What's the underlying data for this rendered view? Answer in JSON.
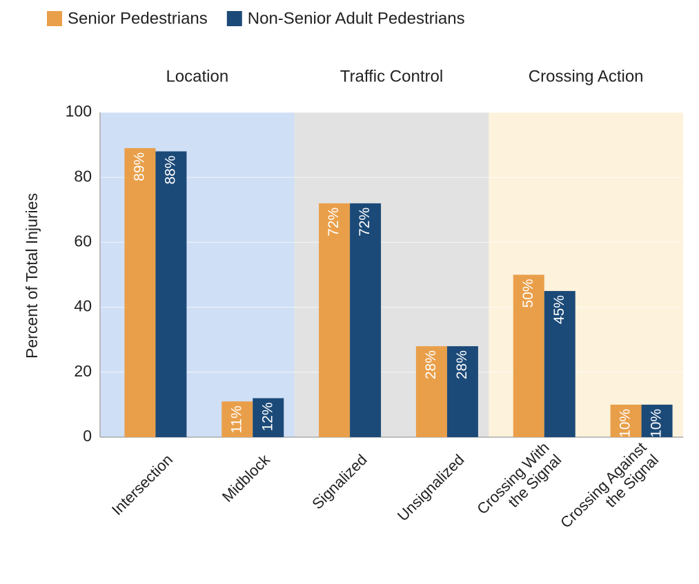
{
  "chart_data": {
    "type": "bar",
    "y_label": "Percent of Total Injuries",
    "groups": [
      {
        "name": "Location",
        "color": "#cfdff6",
        "categories": [
          [
            "Intersection"
          ],
          [
            "Midblock"
          ]
        ]
      },
      {
        "name": "Traffic Control",
        "color": "#e2e2e2",
        "categories": [
          [
            "Signalized"
          ],
          [
            "Unsignalized"
          ]
        ]
      },
      {
        "name": "Crossing Action",
        "color": "#fdf2db",
        "categories": [
          [
            "Crossing With",
            "the Signal"
          ],
          [
            "Crossing Against",
            "the Signal"
          ]
        ]
      }
    ],
    "series": [
      {
        "name": "Senior Pedestrians",
        "color": "#e99f4a",
        "values": [
          89,
          11,
          72,
          28,
          50,
          10
        ],
        "value_labels": [
          "89%",
          "11%",
          "72%",
          "28%",
          "50%",
          "10%"
        ]
      },
      {
        "name": "Non-Senior Adult Pedestrians",
        "color": "#1c4a78",
        "values": [
          88,
          12,
          72,
          28,
          45,
          10
        ],
        "value_labels": [
          "88%",
          "12%",
          "72%",
          "28%",
          "45%",
          "10%"
        ]
      }
    ],
    "ylim": [
      0,
      100
    ],
    "yticks": [
      0,
      20,
      40,
      60,
      80,
      100
    ],
    "grid": true
  }
}
